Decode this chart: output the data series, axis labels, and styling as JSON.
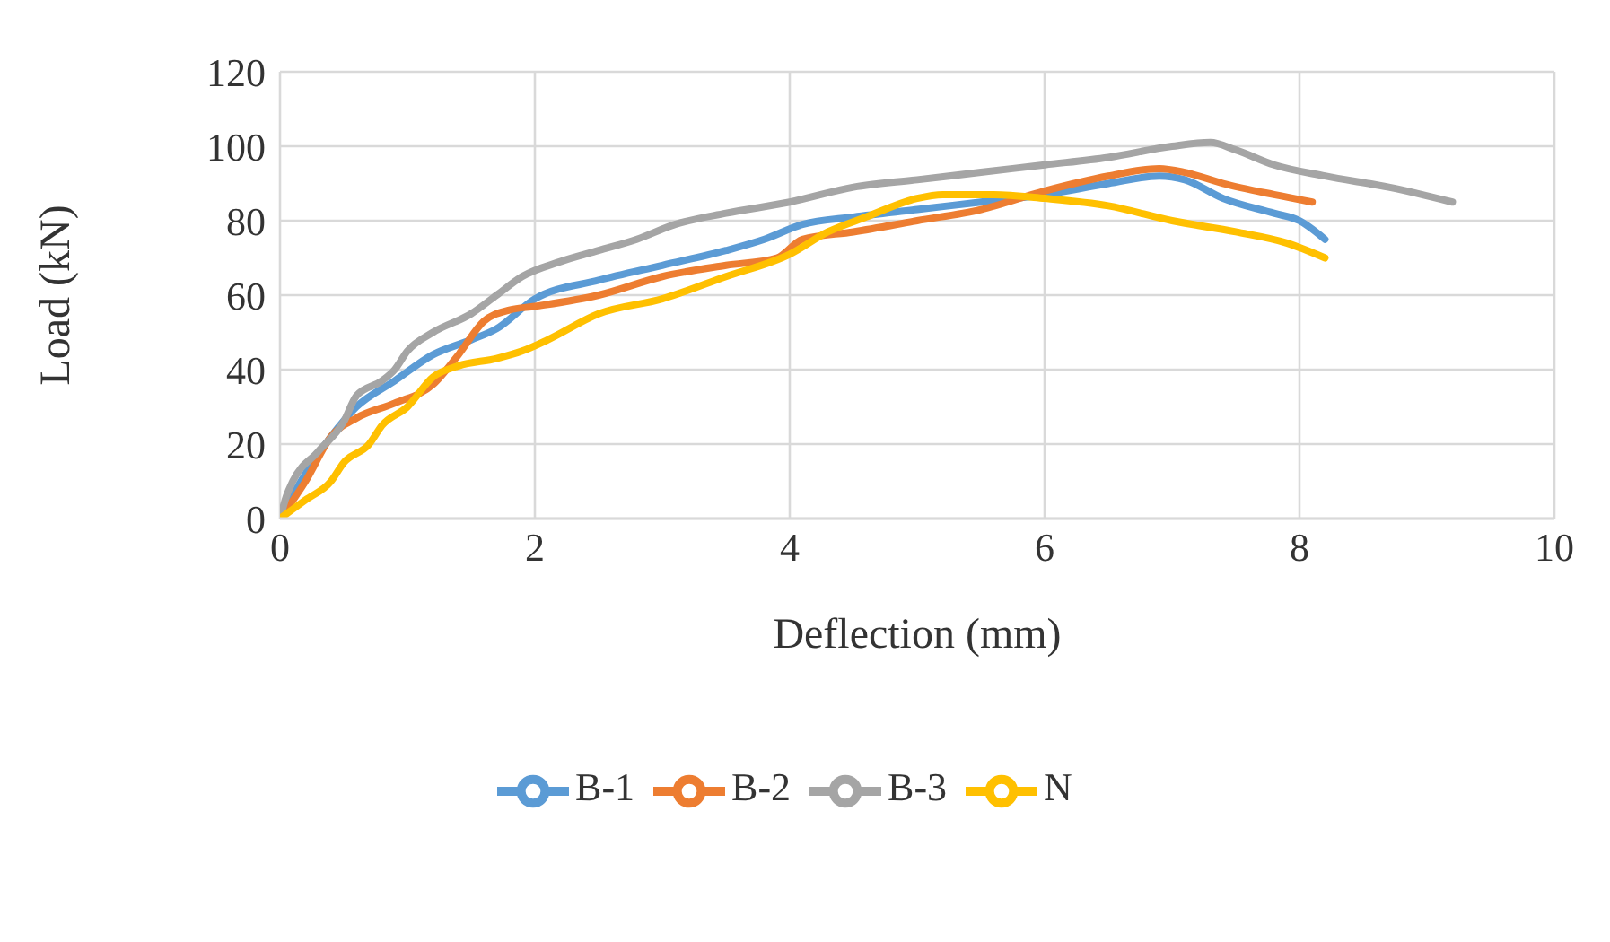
{
  "chart_data": {
    "type": "line",
    "xlabel": "Deflection (mm)",
    "ylabel": "Load (kN)",
    "xlim": [
      0,
      10
    ],
    "xticks": [
      0,
      2,
      4,
      6,
      8,
      10
    ],
    "ylim": [
      0,
      120
    ],
    "yticks": [
      0,
      20,
      40,
      60,
      80,
      100,
      120
    ],
    "grid": true,
    "legend": "bottom",
    "marker": "none",
    "line_style": "solid",
    "series": [
      {
        "name": "B-1",
        "color": "#5b9bd5",
        "x": [
          0,
          0.2,
          0.4,
          0.6,
          0.9,
          1.2,
          1.5,
          1.7,
          2,
          2.5,
          3,
          3.5,
          3.8,
          4.1,
          4.5,
          5,
          5.5,
          6,
          6.5,
          6.9,
          7.1,
          7.4,
          7.8,
          8,
          8.2
        ],
        "values": [
          0,
          12,
          22,
          30,
          37,
          44,
          48,
          51,
          59,
          64,
          68,
          72,
          75,
          79,
          81,
          83,
          85,
          87,
          90,
          92,
          91,
          86,
          82,
          80,
          75
        ]
      },
      {
        "name": "B-2",
        "color": "#ed7d31",
        "x": [
          0,
          0.2,
          0.4,
          0.6,
          0.9,
          1.2,
          1.4,
          1.6,
          1.8,
          2,
          2.5,
          3,
          3.5,
          3.9,
          4.1,
          4.5,
          5,
          5.5,
          6,
          6.5,
          6.9,
          7.1,
          7.4,
          7.8,
          8.1
        ],
        "values": [
          0,
          10,
          22,
          27,
          31,
          36,
          44,
          53,
          56,
          57,
          60,
          65,
          68,
          70,
          75,
          77,
          80,
          83,
          88,
          92,
          94,
          93,
          90,
          87,
          85
        ]
      },
      {
        "name": "B-3",
        "color": "#a5a5a5",
        "x": [
          0,
          0.05,
          0.1,
          0.3,
          0.5,
          0.6,
          0.8,
          0.9,
          1,
          1.2,
          1.5,
          1.7,
          1.9,
          2.2,
          2.5,
          2.8,
          3.1,
          3.5,
          4,
          4.5,
          5,
          5.5,
          6,
          6.5,
          7,
          7.3,
          7.5,
          7.8,
          8.2,
          8.7,
          9.2
        ],
        "values": [
          0,
          6,
          10,
          18,
          26,
          33,
          37,
          40,
          45,
          50,
          55,
          60,
          65,
          69,
          72,
          75,
          79,
          82,
          85,
          89,
          91,
          93,
          95,
          97,
          100,
          101,
          99,
          95,
          92,
          89,
          85
        ]
      },
      {
        "name": "N",
        "color": "#ffc000",
        "x": [
          0,
          0.2,
          0.4,
          0.5,
          0.7,
          0.8,
          1,
          1.2,
          1.4,
          1.7,
          1.9,
          2.1,
          2.5,
          3,
          3.5,
          4,
          4.3,
          4.6,
          5,
          5.2,
          5.6,
          6,
          6.5,
          7,
          7.5,
          7.9,
          8.2
        ],
        "values": [
          0,
          5,
          10,
          15,
          20,
          25,
          30,
          38,
          41,
          43,
          45,
          48,
          55,
          59,
          65,
          71,
          77,
          81,
          86,
          87,
          87,
          86,
          84,
          80,
          77,
          74,
          70
        ]
      }
    ]
  }
}
